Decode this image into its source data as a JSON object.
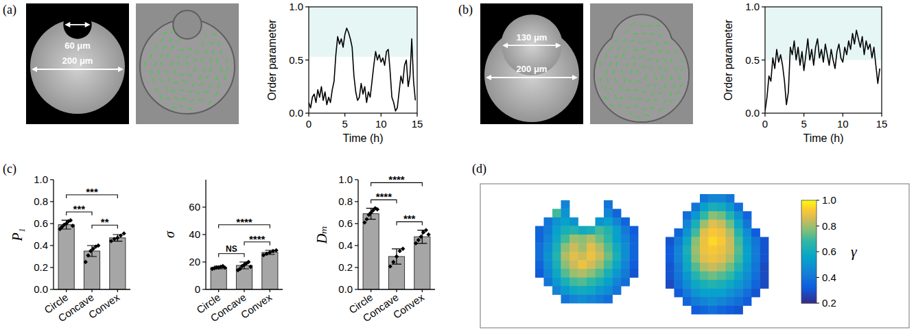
{
  "panel_labels": [
    "(a)",
    "(b)",
    "(c)",
    "(d)"
  ],
  "images": [
    {
      "geometry": "concave",
      "labels": [
        "60 μm",
        "200 μm"
      ]
    },
    {
      "geometry": "convex",
      "labels": [
        "130 μm",
        "200 μm"
      ]
    }
  ],
  "chart_data": [
    {
      "type": "line",
      "x_label": "Time (h)",
      "y_label": "Order parameter",
      "x": [
        0,
        0.25,
        0.5,
        0.75,
        1,
        1.25,
        1.5,
        1.75,
        2,
        2.25,
        2.5,
        2.75,
        3,
        3.25,
        3.5,
        3.75,
        4,
        4.25,
        4.5,
        4.75,
        5,
        5.25,
        5.5,
        5.75,
        6,
        6.25,
        6.5,
        6.75,
        7,
        7.25,
        7.5,
        7.75,
        8,
        8.25,
        8.5,
        8.75,
        9,
        9.25,
        9.5,
        9.75,
        10,
        10.25,
        10.5,
        10.75,
        11,
        11.25,
        11.5,
        11.75,
        12,
        12.25,
        12.5,
        12.75,
        13,
        13.25,
        13.5,
        13.75,
        14,
        14.25,
        14.5,
        14.75
      ],
      "values": [
        0.1,
        0.05,
        0.15,
        0.18,
        0.1,
        0.22,
        0.15,
        0.25,
        0.12,
        0.2,
        0.08,
        0.15,
        0.1,
        0.22,
        0.3,
        0.55,
        0.72,
        0.65,
        0.7,
        0.62,
        0.74,
        0.8,
        0.76,
        0.7,
        0.62,
        0.35,
        0.2,
        0.12,
        0.15,
        0.28,
        0.18,
        0.25,
        0.1,
        0.2,
        0.15,
        0.3,
        0.45,
        0.58,
        0.5,
        0.55,
        0.48,
        0.52,
        0.45,
        0.58,
        0.6,
        0.4,
        0.15,
        0.1,
        0.02,
        0.05,
        0.2,
        0.35,
        0.28,
        0.45,
        0.5,
        0.25,
        0.35,
        0.7,
        0.3,
        0.12
      ],
      "color": "#000000",
      "shaded_above": 0.53,
      "xlim": [
        0,
        15
      ],
      "xticks": [
        0,
        5,
        10,
        15
      ],
      "ylim": [
        0,
        1
      ],
      "yticks": [
        {
          "value": 0,
          "label": "0.0"
        },
        {
          "value": 0.5,
          "label": "0.5"
        },
        {
          "value": 1,
          "label": "1.0"
        }
      ]
    },
    {
      "type": "line",
      "x_label": "Time (h)",
      "y_label": "Order parameter",
      "x": [
        0,
        0.25,
        0.5,
        0.75,
        1,
        1.25,
        1.5,
        1.75,
        2,
        2.25,
        2.5,
        2.75,
        3,
        3.25,
        3.5,
        3.75,
        4,
        4.25,
        4.5,
        4.75,
        5,
        5.25,
        5.5,
        5.75,
        6,
        6.25,
        6.5,
        6.75,
        7,
        7.25,
        7.5,
        7.75,
        8,
        8.25,
        8.5,
        8.75,
        9,
        9.25,
        9.5,
        9.75,
        10,
        10.25,
        10.5,
        10.75,
        11,
        11.25,
        11.5,
        11.75,
        12,
        12.25,
        12.5,
        12.75,
        13,
        13.25,
        13.5,
        13.75,
        14,
        14.25,
        14.5,
        14.75
      ],
      "values": [
        0.02,
        0.15,
        0.35,
        0.3,
        0.52,
        0.42,
        0.6,
        0.48,
        0.55,
        0.45,
        0.3,
        0.08,
        0.2,
        0.62,
        0.55,
        0.68,
        0.5,
        0.62,
        0.45,
        0.58,
        0.4,
        0.55,
        0.7,
        0.5,
        0.6,
        0.45,
        0.62,
        0.7,
        0.52,
        0.6,
        0.48,
        0.65,
        0.55,
        0.45,
        0.6,
        0.5,
        0.42,
        0.58,
        0.65,
        0.52,
        0.48,
        0.62,
        0.55,
        0.68,
        0.6,
        0.75,
        0.65,
        0.78,
        0.7,
        0.62,
        0.72,
        0.55,
        0.68,
        0.6,
        0.65,
        0.52,
        0.62,
        0.45,
        0.28,
        0.42
      ],
      "color": "#000000",
      "shaded_above": 0.5,
      "xlim": [
        0,
        15
      ],
      "xticks": [
        0,
        5,
        10,
        15
      ],
      "ylim": [
        0,
        1
      ],
      "yticks": [
        {
          "value": 0,
          "label": "0.0"
        },
        {
          "value": 0.5,
          "label": "0.5"
        },
        {
          "value": 1,
          "label": "1.0"
        }
      ]
    },
    {
      "type": "bar",
      "y_label": "P₁",
      "categories": [
        "Circle",
        "Concave",
        "Convex"
      ],
      "values": [
        0.59,
        0.35,
        0.47
      ],
      "errors": [
        0.04,
        0.05,
        0.03
      ],
      "points": [
        [
          0.55,
          0.57,
          0.59,
          0.6,
          0.62,
          0.63,
          0.58
        ],
        [
          0.25,
          0.31,
          0.35,
          0.37,
          0.39,
          0.4
        ],
        [
          0.44,
          0.46,
          0.47,
          0.49,
          0.51
        ]
      ],
      "color": "#a6a6a6",
      "marker": "diamond",
      "significance": [
        {
          "between": [
            "Circle",
            "Concave"
          ],
          "label": "***"
        },
        {
          "between": [
            "Circle",
            "Convex"
          ],
          "label": "***"
        },
        {
          "between": [
            "Concave",
            "Convex"
          ],
          "label": "**"
        }
      ],
      "ylim": [
        0,
        1
      ],
      "yticks": [
        {
          "value": 0,
          "label": "0.0"
        },
        0.2,
        0.4,
        0.6,
        0.8,
        {
          "value": 1,
          "label": "1.0"
        }
      ]
    },
    {
      "type": "bar",
      "y_label": "σ",
      "categories": [
        "Circle",
        "Concave",
        "Convex"
      ],
      "values": [
        16,
        17.5,
        27
      ],
      "errors": [
        1,
        2.5,
        1.5
      ],
      "points": [
        [
          15,
          15.5,
          16,
          16,
          16.5,
          17,
          15.8
        ],
        [
          14,
          15,
          17,
          18,
          19,
          20,
          16.5
        ],
        [
          25,
          26,
          27,
          28,
          28.5
        ]
      ],
      "color": "#a6a6a6",
      "marker": "diamond",
      "significance": [
        {
          "between": [
            "Circle",
            "Concave"
          ],
          "label": "NS"
        },
        {
          "between": [
            "Circle",
            "Convex"
          ],
          "label": "****"
        },
        {
          "between": [
            "Concave",
            "Convex"
          ],
          "label": "****"
        }
      ],
      "ylim": [
        0,
        80
      ],
      "yticks": [
        0,
        20,
        40,
        60
      ]
    },
    {
      "type": "bar",
      "y_label": "Dₘ",
      "categories": [
        "Circle",
        "Concave",
        "Convex"
      ],
      "values": [
        0.69,
        0.3,
        0.48
      ],
      "errors": [
        0.05,
        0.07,
        0.06
      ],
      "points": [
        [
          0.61,
          0.64,
          0.68,
          0.7,
          0.72,
          0.74,
          0.73
        ],
        [
          0.21,
          0.25,
          0.3,
          0.35,
          0.37
        ],
        [
          0.42,
          0.45,
          0.48,
          0.52,
          0.54,
          0.5
        ]
      ],
      "color": "#a6a6a6",
      "marker": "diamond",
      "significance": [
        {
          "between": [
            "Circle",
            "Concave"
          ],
          "label": "****"
        },
        {
          "between": [
            "Circle",
            "Convex"
          ],
          "label": "****"
        },
        {
          "between": [
            "Concave",
            "Convex"
          ],
          "label": "***"
        }
      ],
      "ylim": [
        0,
        1
      ],
      "yticks": [
        {
          "value": 0,
          "label": "0.0"
        },
        0.2,
        0.4,
        0.6,
        0.8,
        {
          "value": 1,
          "label": "1.0"
        }
      ]
    },
    {
      "type": "heatmap",
      "color_range": [
        0.2,
        1
      ],
      "cells": [
        [
          null,
          null,
          null,
          0.45,
          null,
          null,
          null,
          null,
          0.4,
          null,
          null,
          null
        ],
        [
          null,
          null,
          0.7,
          0.5,
          null,
          null,
          null,
          null,
          0.45,
          0.35,
          null,
          null
        ],
        [
          null,
          0.4,
          0.5,
          0.55,
          0.5,
          null,
          null,
          0.5,
          0.55,
          0.45,
          0.35,
          null
        ],
        [
          0.35,
          0.42,
          0.55,
          0.62,
          0.65,
          0.6,
          0.62,
          0.7,
          0.65,
          0.55,
          0.42,
          0.32
        ],
        [
          0.35,
          0.45,
          0.58,
          0.7,
          0.8,
          0.78,
          0.82,
          0.75,
          0.68,
          0.55,
          0.45,
          0.35
        ],
        [
          0.38,
          0.48,
          0.62,
          0.78,
          0.85,
          0.8,
          0.88,
          0.82,
          0.72,
          0.6,
          0.48,
          0.35
        ],
        [
          0.38,
          0.5,
          0.65,
          0.82,
          0.88,
          0.85,
          0.9,
          0.85,
          0.75,
          0.62,
          0.48,
          0.35
        ],
        [
          0.35,
          0.48,
          0.62,
          0.78,
          0.85,
          0.9,
          0.86,
          0.8,
          0.7,
          0.58,
          0.45,
          0.32
        ],
        [
          0.32,
          0.45,
          0.58,
          0.72,
          0.8,
          0.82,
          0.78,
          0.72,
          0.62,
          0.52,
          0.42,
          0.3
        ],
        [
          null,
          0.4,
          0.52,
          0.62,
          0.7,
          0.72,
          0.68,
          0.62,
          0.55,
          0.45,
          0.38,
          null
        ],
        [
          null,
          null,
          0.45,
          0.52,
          0.58,
          0.6,
          0.58,
          0.52,
          0.48,
          0.4,
          null,
          null
        ],
        [
          null,
          null,
          null,
          0.4,
          0.45,
          0.48,
          0.45,
          0.42,
          0.38,
          null,
          null,
          null
        ]
      ]
    },
    {
      "type": "heatmap",
      "color_range": [
        0.2,
        1
      ],
      "color_ticks": [
        0.2,
        0.4,
        0.6,
        0.8,
        {
          "value": 1,
          "label": "1.0"
        }
      ],
      "colorbar_label": "γ",
      "cells": [
        [
          null,
          null,
          null,
          null,
          0.4,
          0.45,
          0.45,
          0.4,
          null,
          null,
          null,
          null
        ],
        [
          null,
          null,
          null,
          0.4,
          0.55,
          0.62,
          0.6,
          0.52,
          0.38,
          null,
          null,
          null
        ],
        [
          null,
          null,
          0.38,
          0.52,
          0.68,
          0.78,
          0.75,
          0.65,
          0.5,
          0.35,
          null,
          null
        ],
        [
          null,
          null,
          0.45,
          0.62,
          0.8,
          0.88,
          0.85,
          0.75,
          0.58,
          0.4,
          null,
          null
        ],
        [
          null,
          0.35,
          0.5,
          0.7,
          0.88,
          0.92,
          0.9,
          0.82,
          0.65,
          0.48,
          0.32,
          null
        ],
        [
          0.3,
          0.42,
          0.58,
          0.78,
          0.9,
          0.95,
          0.92,
          0.85,
          0.7,
          0.52,
          0.4,
          0.3
        ],
        [
          0.32,
          0.45,
          0.62,
          0.8,
          0.9,
          0.92,
          0.9,
          0.85,
          0.72,
          0.55,
          0.42,
          0.3
        ],
        [
          0.32,
          0.45,
          0.6,
          0.78,
          0.88,
          0.9,
          0.88,
          0.82,
          0.7,
          0.55,
          0.42,
          0.3
        ],
        [
          0.3,
          0.42,
          0.58,
          0.72,
          0.82,
          0.85,
          0.82,
          0.75,
          0.65,
          0.52,
          0.4,
          0.28
        ],
        [
          0.3,
          0.4,
          0.52,
          0.65,
          0.72,
          0.75,
          0.72,
          0.68,
          0.58,
          0.48,
          0.38,
          0.28
        ],
        [
          0.28,
          0.38,
          0.48,
          0.58,
          0.62,
          0.65,
          0.62,
          0.58,
          0.52,
          0.45,
          0.35,
          0.28
        ],
        [
          null,
          0.32,
          0.42,
          0.5,
          0.55,
          0.55,
          0.55,
          0.5,
          0.45,
          0.38,
          0.3,
          null
        ],
        [
          null,
          null,
          0.35,
          0.42,
          0.45,
          0.48,
          0.45,
          0.42,
          0.38,
          0.32,
          null,
          null
        ],
        [
          null,
          null,
          null,
          0.32,
          0.35,
          0.38,
          0.35,
          0.32,
          0.3,
          null,
          null,
          null
        ]
      ]
    }
  ]
}
